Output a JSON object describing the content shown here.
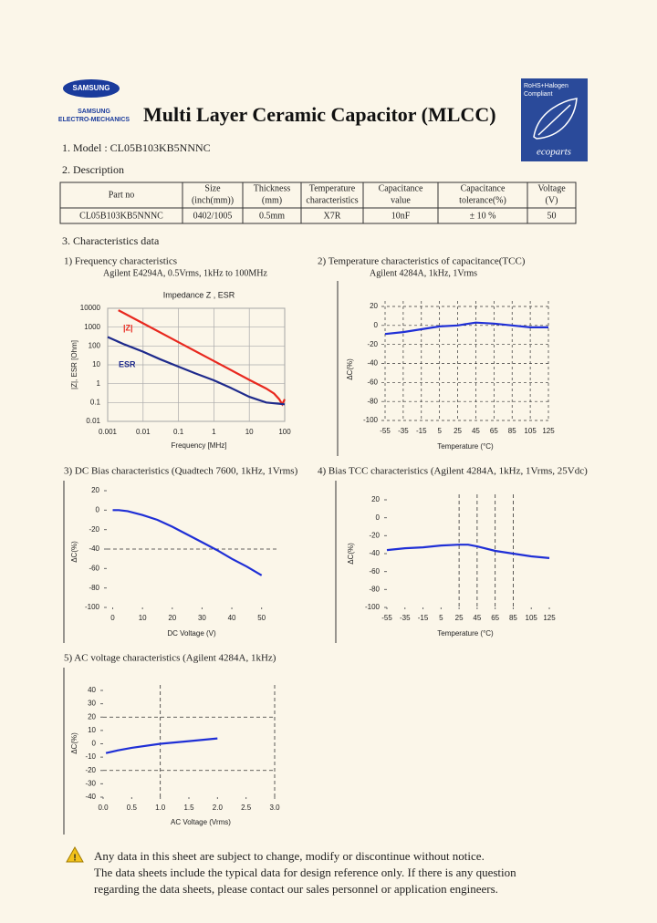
{
  "logo": {
    "brand": "SAMSUNG",
    "line1": "SAMSUNG",
    "line2": "ELECTRO-MECHANICS"
  },
  "header": {
    "title": "Multi Layer Ceramic Capacitor (MLCC)"
  },
  "badge": {
    "line1": "RoHS+Halogen",
    "line2": "Compliant",
    "brand": "ecoparts"
  },
  "model": "1. Model : CL05B103KB5NNNC",
  "description": {
    "heading": "2. Description",
    "headers": [
      [
        "Part no"
      ],
      [
        "Size",
        "(inch(mm))"
      ],
      [
        "Thickness",
        "(mm)"
      ],
      [
        "Temperature",
        "characteristics"
      ],
      [
        "Capacitance",
        "value"
      ],
      [
        "Capacitance",
        "tolerance(%)"
      ],
      [
        "Voltage",
        "(V)"
      ]
    ],
    "row": [
      "CL05B103KB5NNNC",
      "0402/1005",
      "0.5mm",
      "X7R",
      "10nF",
      "± 10 %",
      "50"
    ]
  },
  "section": "3. Characteristics data",
  "chart_data": [
    {
      "type": "line",
      "title": "1) Frequency characteristics",
      "subtitle": "Agilent E4294A, 0.5Vrms, 1kHz to 100MHz",
      "plot_title": "Impedance  Z , ESR",
      "x_label": "Frequency [MHz]",
      "y_label": "|Z|, ESR [Ohm]",
      "xscale": "log",
      "yscale": "log",
      "xlim": [
        0.001,
        100
      ],
      "ylim": [
        0.01,
        10000
      ],
      "xticks": [
        0.001,
        0.01,
        0.1,
        1,
        10,
        100
      ],
      "yticks": [
        0.01,
        0.1,
        1,
        10,
        100,
        1000,
        10000
      ],
      "grid": true,
      "series": [
        {
          "name": "|Z|",
          "color": "#e8281e",
          "x": [
            0.002,
            0.01,
            0.1,
            1,
            10,
            30,
            50,
            70,
            85,
            100
          ],
          "values": [
            7958,
            1592,
            159,
            15.9,
            1.59,
            0.55,
            0.3,
            0.15,
            0.08,
            0.15
          ]
        },
        {
          "name": "ESR",
          "color": "#1e2a8c",
          "x": [
            0.001,
            0.003,
            0.01,
            0.03,
            0.1,
            0.3,
            1,
            3,
            10,
            30,
            100
          ],
          "values": [
            300,
            120,
            50,
            20,
            8,
            3.5,
            1.5,
            0.6,
            0.2,
            0.1,
            0.08
          ]
        }
      ]
    },
    {
      "type": "line",
      "title": "2) Temperature characteristics of capacitance(TCC)",
      "subtitle": "Agilent 4284A, 1kHz, 1Vrms",
      "x_label": "Temperature (°C)",
      "y_label": "ΔC(%)",
      "xlim": [
        -55,
        125
      ],
      "ylim": [
        -100,
        20
      ],
      "xticks": [
        -55,
        -35,
        -15,
        5,
        25,
        45,
        65,
        85,
        105,
        125
      ],
      "yticks": [
        -100,
        -80,
        -60,
        -40,
        -20,
        0,
        20
      ],
      "grid": "dashed",
      "series": [
        {
          "color": "#1f2fd6",
          "x": [
            -55,
            -35,
            -15,
            5,
            25,
            45,
            65,
            85,
            105,
            125
          ],
          "values": [
            -9,
            -7,
            -4,
            -1,
            0,
            3,
            2,
            0,
            -2,
            -2
          ]
        }
      ]
    },
    {
      "type": "line",
      "title": "3) DC Bias characteristics (Quadtech 7600, 1kHz, 1Vrms)",
      "x_label": "DC Voltage (V)",
      "y_label": "ΔC(%)",
      "xlim": [
        -2,
        55
      ],
      "ylim": [
        -100,
        20
      ],
      "xticks": [
        0,
        10,
        20,
        30,
        40,
        50
      ],
      "yticks": [
        -100,
        -80,
        -60,
        -40,
        -20,
        0,
        20
      ],
      "ref_y": [
        -40
      ],
      "series": [
        {
          "color": "#1f2fd6",
          "x": [
            0,
            2,
            5,
            10,
            15,
            20,
            25,
            30,
            35,
            40,
            45,
            50
          ],
          "values": [
            0,
            0,
            -1,
            -5,
            -10,
            -17,
            -25,
            -33,
            -41,
            -50,
            -58,
            -67
          ]
        }
      ]
    },
    {
      "type": "line",
      "title": "4) Bias TCC characteristics (Agilent 4284A, 1kHz, 1Vrms, 25Vdc)",
      "x_label": "Temperature (°C)",
      "y_label": "ΔC(%)",
      "xlim": [
        -55,
        125
      ],
      "ylim": [
        -100,
        20
      ],
      "xticks": [
        -55,
        -35,
        -15,
        5,
        25,
        45,
        65,
        85,
        105,
        125
      ],
      "yticks": [
        -100,
        -80,
        -60,
        -40,
        -20,
        0,
        20
      ],
      "ref_x": [
        25,
        45,
        65,
        85
      ],
      "series": [
        {
          "color": "#1f2fd6",
          "x": [
            -55,
            -35,
            -15,
            5,
            25,
            35,
            45,
            65,
            85,
            105,
            125
          ],
          "values": [
            -36,
            -34,
            -33,
            -31,
            -30,
            -30,
            -32,
            -37,
            -40,
            -43,
            -45
          ]
        }
      ]
    },
    {
      "type": "line",
      "title": "5) AC voltage characteristics (Agilent 4284A, 1kHz)",
      "x_label": "AC Voltage (Vrms)",
      "y_label": "ΔC(%)",
      "xlim": [
        0,
        3
      ],
      "ylim": [
        -40,
        40
      ],
      "xticks": [
        {
          "value": 0,
          "label": "0.0"
        },
        0.5,
        {
          "value": 1,
          "label": "1.0"
        },
        1.5,
        {
          "value": 2,
          "label": "2.0"
        },
        2.5,
        {
          "value": 3,
          "label": "3.0"
        }
      ],
      "yticks": [
        -40,
        -30,
        -20,
        -10,
        0,
        10,
        20,
        30,
        40
      ],
      "ref_x": [
        1,
        3
      ],
      "ref_y": [
        20,
        -20
      ],
      "series": [
        {
          "color": "#1f2fd6",
          "x": [
            0.05,
            0.25,
            0.5,
            1,
            1.5,
            2
          ],
          "values": [
            -7,
            -5,
            -3,
            0,
            2,
            4
          ]
        }
      ]
    }
  ],
  "notice": [
    "Any data in this sheet are subject to change, modify or discontinue without notice.",
    "The data sheets include the typical data for design reference only. If there is any question",
    "regarding the data sheets, please contact our sales personnel or application engineers."
  ]
}
